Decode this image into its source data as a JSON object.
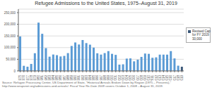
{
  "chart_data": {
    "type": "bar",
    "title": "Refugee Admissions to the United States, 1975–August 31, 2019",
    "annotations": [
      "Source: Refugee Processing Center, US Department of State, \"Historical Arrivals Broken Down by Region (1975 – Presents),\" http://www.wrapsnet.org/admissions-and-arrivals/. Fiscal Year Re-Date 2009 covers October 1, 2008 – August 31, 2019."
    ],
    "categories": [
      "1975",
      "1976",
      "1977",
      "1978",
      "1979",
      "1980",
      "1981",
      "1982",
      "1983",
      "1984",
      "1985",
      "1986",
      "1987",
      "1988",
      "1989",
      "1990",
      "1991",
      "1992",
      "1993",
      "1994",
      "1995",
      "1996",
      "1997",
      "1998",
      "1999",
      "2000",
      "2001",
      "2002",
      "2003",
      "2004",
      "2005",
      "2006",
      "2007",
      "2008",
      "2009",
      "2010",
      "2011",
      "2012",
      "2013",
      "2014",
      "2015",
      "2016",
      "2017",
      "2018",
      "2019"
    ],
    "series": [
      {
        "name": "Revised Cap\nfor FY 2019:\n30,000",
        "color": "#3d5a7a",
        "colors": [
          "#5b9bd5",
          "#5b9bd5",
          "#5b9bd5",
          "#5b9bd5",
          "#5b9bd5",
          "#5b9bd5",
          "#5b9bd5",
          "#5b9bd5",
          "#5b9bd5",
          "#5b9bd5",
          "#5b9bd5",
          "#5b9bd5",
          "#5b9bd5",
          "#5b9bd5",
          "#5b9bd5",
          "#5b9bd5",
          "#5b9bd5",
          "#5b9bd5",
          "#5b9bd5",
          "#5b9bd5",
          "#5b9bd5",
          "#5b9bd5",
          "#5b9bd5",
          "#5b9bd5",
          "#5b9bd5",
          "#5b9bd5",
          "#5b9bd5",
          "#5b9bd5",
          "#5b9bd5",
          "#5b9bd5",
          "#5b9bd5",
          "#5b9bd5",
          "#5b9bd5",
          "#5b9bd5",
          "#5b9bd5",
          "#5b9bd5",
          "#5b9bd5",
          "#5b9bd5",
          "#5b9bd5",
          "#5b9bd5",
          "#5b9bd5",
          "#5b9bd5",
          "#5b9bd5",
          "#5b9bd5",
          "#3d5a7a"
        ],
        "values": [
          148000,
          22000,
          18200,
          30000,
          76000,
          207116,
          159252,
          98096,
          61218,
          70393,
          67704,
          62146,
          64528,
          76483,
          107070,
          122066,
          113389,
          132531,
          119482,
          112682,
          99974,
          75686,
          70085,
          76571,
          85010,
          73293,
          68925,
          27131,
          28422,
          52868,
          53813,
          41150,
          48282,
          60191,
          74602,
          73293,
          56424,
          58238,
          69933,
          69975,
          69933,
          84994,
          53716,
          22491,
          18000
        ]
      }
    ],
    "ylim": [
      0,
      265000
    ],
    "yticks": [
      0,
      {
        "value": 50000,
        "label": "50,000"
      },
      {
        "value": 100000,
        "label": "100,000"
      },
      {
        "value": 150000,
        "label": "150,000"
      },
      {
        "value": 200000,
        "label": "200,000"
      },
      {
        "value": 250000,
        "label": "250,000"
      }
    ],
    "grid": true,
    "legend": "right"
  }
}
